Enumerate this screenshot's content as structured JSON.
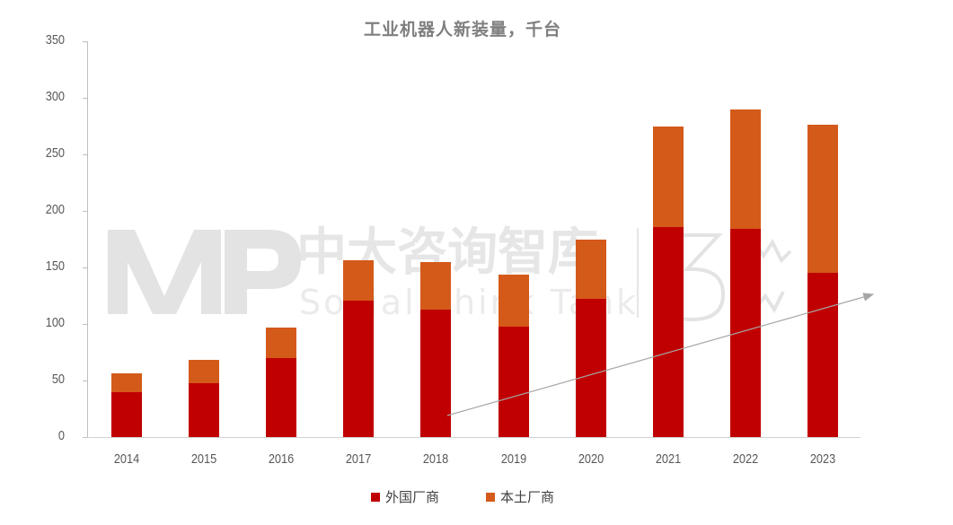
{
  "chart_data": {
    "type": "bar",
    "stacked": true,
    "title": "工业机器人新装量，千台",
    "xlabel": "",
    "ylabel": "",
    "ylim": [
      0,
      350
    ],
    "yticks": [
      0,
      50,
      100,
      150,
      200,
      250,
      300,
      350
    ],
    "grid": false,
    "legend_position": "bottom",
    "categories": [
      "2014",
      "2015",
      "2016",
      "2017",
      "2018",
      "2019",
      "2020",
      "2021",
      "2022",
      "2023"
    ],
    "series": [
      {
        "name": "外国厂商",
        "color": "#C00000",
        "values": [
          40,
          48,
          70,
          121,
          113,
          98,
          122,
          186,
          184,
          145
        ]
      },
      {
        "name": "本土厂商",
        "color": "#D45A1A",
        "values": [
          16,
          20,
          27,
          35,
          42,
          46,
          53,
          89,
          106,
          131
        ]
      }
    ],
    "totals": [
      56,
      68,
      97,
      156,
      155,
      144,
      175,
      275,
      290,
      276
    ],
    "annotations": [
      {
        "type": "trend-arrow",
        "from_category": "2018",
        "to_category": "2023",
        "color": "#A6A6A6"
      }
    ]
  },
  "watermark": {
    "logo": "MP",
    "name_cn": "中大咨询智库",
    "name_en": "Social Think Tank"
  }
}
